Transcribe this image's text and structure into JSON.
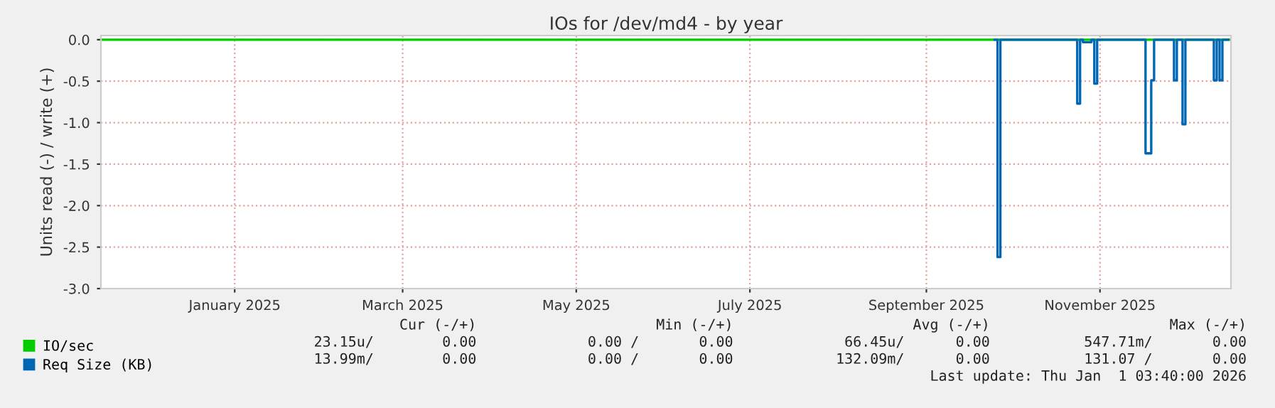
{
  "chart_data": {
    "type": "step",
    "title": "IOs for /dev/md4 - by year",
    "ylabel": "Units read (-) / write (+)",
    "xlim": [
      "2024-11-30",
      "2026-01-01"
    ],
    "xticks": [
      {
        "value": "2025-01-16",
        "label": "January 2025"
      },
      {
        "value": "2025-03-16",
        "label": "March 2025"
      },
      {
        "value": "2025-05-16",
        "label": "May 2025"
      },
      {
        "value": "2025-07-16",
        "label": "July 2025"
      },
      {
        "value": "2025-09-16",
        "label": "September 2025"
      },
      {
        "value": "2025-11-16",
        "label": "November 2025"
      }
    ],
    "ylim": [
      -3.0,
      0.05
    ],
    "yticks": [
      {
        "value": -3,
        "label": "-3.0"
      },
      {
        "value": -2.5,
        "label": "-2.5"
      },
      {
        "value": -2,
        "label": "-2.0"
      },
      {
        "value": -1.5,
        "label": "-1.5"
      },
      {
        "value": -1,
        "label": "-1.0"
      },
      {
        "value": -0.5,
        "label": "-0.5"
      },
      {
        "value": 0,
        "label": "0.0"
      }
    ],
    "grid": true,
    "legend": "bottom left",
    "series": [
      {
        "name": "IO/sec",
        "color": "#00cc00",
        "x": [
          "2024-11-30",
          "2026-01-01"
        ],
        "values": [
          0,
          0
        ]
      },
      {
        "name": "Req Size (KB)",
        "color": "#0066b3",
        "x": [
          "2025-10-10",
          "2025-10-11",
          "2025-10-12",
          "2025-11-07",
          "2025-11-08",
          "2025-11-09",
          "2025-11-10",
          "2025-11-13",
          "2025-11-14",
          "2025-11-15",
          "2025-12-01",
          "2025-12-02",
          "2025-12-04",
          "2025-12-05",
          "2025-12-12",
          "2025-12-13",
          "2025-12-15",
          "2025-12-16",
          "2025-12-26",
          "2025-12-27",
          "2025-12-28",
          "2025-12-29",
          "2025-12-31"
        ],
        "values": [
          0,
          -2.62,
          0,
          0,
          -0.77,
          0,
          -0.03,
          0,
          -0.53,
          0,
          0,
          -1.37,
          -0.49,
          0,
          -0.49,
          0,
          -1.02,
          0,
          -0.49,
          0,
          -0.49,
          0,
          0
        ]
      }
    ],
    "annotations": [
      "Cur (-/+)                     Min (-/+)                     Avg (-/+)                     Max (-/+)",
      "23.15u/        0.00             0.00 /       0.00             66.45u/      0.00           547.71m/       0.00",
      "13.99m/        0.00             0.00 /       0.00            132.09m/      0.00           131.07 /       0.00",
      "Last update: Thu Jan  1 03:40:00 2026"
    ]
  }
}
